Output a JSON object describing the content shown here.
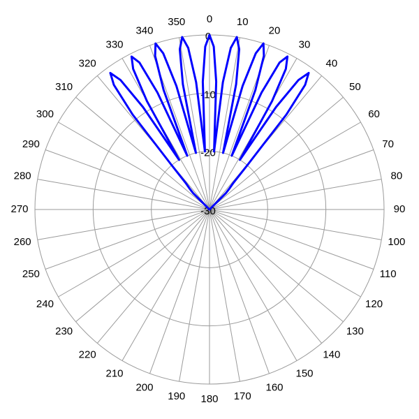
{
  "chart_data": {
    "type": "polar",
    "theta": [
      300,
      315,
      316.5,
      318,
      319.5,
      321,
      322.5,
      324,
      325.5,
      327,
      328.5,
      330,
      331.5,
      333,
      334.5,
      336,
      337.5,
      339,
      340.5,
      342,
      343.5,
      345,
      346.5,
      348,
      349.5,
      351,
      352.5,
      354,
      355.5,
      357,
      358.5,
      0,
      1.5,
      3,
      4.5,
      6,
      7.5,
      9,
      10.5,
      12,
      13.5,
      15,
      16.5,
      18,
      19.5,
      21,
      22.5,
      24,
      25.5,
      27,
      28.5,
      30,
      31.5,
      33,
      34.5,
      36,
      37.5,
      39,
      40.5,
      42,
      43.5,
      45,
      60
    ],
    "series": [
      {
        "color": "#0000ff",
        "values": [
          -30,
          -26,
          -25,
          -24,
          -20,
          -9,
          -3,
          -1,
          -3,
          -9,
          -20,
          -8.5,
          -2.5,
          -0.5,
          -2,
          -8,
          -20,
          -8,
          -2,
          0,
          -2,
          -8,
          -20,
          -8,
          -2,
          0,
          -2,
          -8,
          -20,
          -8,
          -2,
          0,
          -2,
          -8,
          -20,
          -8,
          -2,
          0,
          -2,
          -8,
          -20,
          -8,
          -2,
          0,
          -2,
          -8,
          -20,
          -8,
          -2,
          -0.5,
          -2.5,
          -8.5,
          -20,
          -9,
          -3,
          -1,
          -3,
          -9,
          -20,
          -24,
          -25,
          -26,
          -30
        ]
      }
    ],
    "rlim": [
      -30,
      0
    ],
    "rticks": [
      -30,
      -20,
      -10,
      0
    ],
    "thetaticks": [
      0,
      10,
      20,
      30,
      40,
      50,
      60,
      70,
      80,
      90,
      100,
      110,
      120,
      130,
      140,
      150,
      160,
      170,
      180,
      190,
      200,
      210,
      220,
      230,
      240,
      250,
      260,
      270,
      280,
      290,
      300,
      310,
      320,
      330,
      340,
      350
    ],
    "grid": true
  }
}
